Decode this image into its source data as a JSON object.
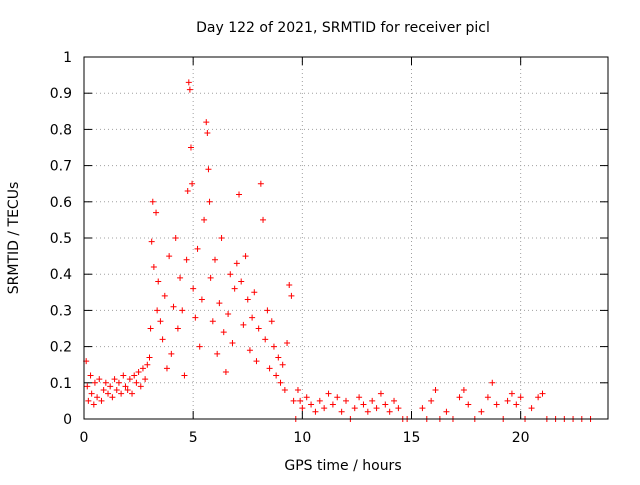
{
  "chart_data": {
    "type": "scatter",
    "title": "Day 122 of 2021, SRMTID for receiver picl",
    "xlabel": "GPS time / hours",
    "ylabel": "SRMTID / TECUs",
    "xlim": [
      0,
      24
    ],
    "ylim": [
      0,
      1
    ],
    "grid": true,
    "marker": "+",
    "series_color": "#ff0000",
    "x_ticks": [
      0,
      5,
      10,
      15,
      20
    ],
    "x_tick_labels": [
      "0",
      "5",
      "10",
      "15",
      "20"
    ],
    "y_ticks": [
      0,
      0.1,
      0.2,
      0.3,
      0.4,
      0.5,
      0.6,
      0.7,
      0.8,
      0.9,
      1
    ],
    "y_tick_labels": [
      "0",
      "0.1",
      "0.2",
      "0.3",
      "0.4",
      "0.5",
      "0.6",
      "0.7",
      "0.8",
      "0.9",
      "1"
    ],
    "series": [
      {
        "name": "SRMTID",
        "points": [
          [
            0.1,
            0.16
          ],
          [
            0.15,
            0.09
          ],
          [
            0.2,
            0.05
          ],
          [
            0.3,
            0.12
          ],
          [
            0.35,
            0.07
          ],
          [
            0.45,
            0.04
          ],
          [
            0.5,
            0.1
          ],
          [
            0.6,
            0.06
          ],
          [
            0.7,
            0.11
          ],
          [
            0.8,
            0.05
          ],
          [
            0.9,
            0.08
          ],
          [
            1.0,
            0.1
          ],
          [
            1.1,
            0.07
          ],
          [
            1.2,
            0.09
          ],
          [
            1.3,
            0.06
          ],
          [
            1.4,
            0.11
          ],
          [
            1.5,
            0.08
          ],
          [
            1.6,
            0.1
          ],
          [
            1.7,
            0.07
          ],
          [
            1.8,
            0.12
          ],
          [
            1.9,
            0.09
          ],
          [
            2.0,
            0.08
          ],
          [
            2.1,
            0.11
          ],
          [
            2.2,
            0.07
          ],
          [
            2.3,
            0.12
          ],
          [
            2.4,
            0.1
          ],
          [
            2.5,
            0.13
          ],
          [
            2.6,
            0.09
          ],
          [
            2.7,
            0.14
          ],
          [
            2.8,
            0.11
          ],
          [
            2.9,
            0.15
          ],
          [
            3.0,
            0.17
          ],
          [
            3.05,
            0.25
          ],
          [
            3.1,
            0.49
          ],
          [
            3.15,
            0.6
          ],
          [
            3.2,
            0.42
          ],
          [
            3.3,
            0.57
          ],
          [
            3.35,
            0.3
          ],
          [
            3.4,
            0.38
          ],
          [
            3.5,
            0.27
          ],
          [
            3.6,
            0.22
          ],
          [
            3.7,
            0.34
          ],
          [
            3.8,
            0.14
          ],
          [
            3.9,
            0.45
          ],
          [
            4.0,
            0.18
          ],
          [
            4.1,
            0.31
          ],
          [
            4.2,
            0.5
          ],
          [
            4.3,
            0.25
          ],
          [
            4.4,
            0.39
          ],
          [
            4.5,
            0.3
          ],
          [
            4.6,
            0.12
          ],
          [
            4.7,
            0.44
          ],
          [
            4.75,
            0.63
          ],
          [
            4.8,
            0.93
          ],
          [
            4.85,
            0.91
          ],
          [
            4.9,
            0.75
          ],
          [
            4.95,
            0.65
          ],
          [
            5.0,
            0.36
          ],
          [
            5.1,
            0.28
          ],
          [
            5.2,
            0.47
          ],
          [
            5.3,
            0.2
          ],
          [
            5.4,
            0.33
          ],
          [
            5.5,
            0.55
          ],
          [
            5.6,
            0.82
          ],
          [
            5.65,
            0.79
          ],
          [
            5.7,
            0.69
          ],
          [
            5.75,
            0.6
          ],
          [
            5.8,
            0.39
          ],
          [
            5.9,
            0.27
          ],
          [
            6.0,
            0.44
          ],
          [
            6.1,
            0.18
          ],
          [
            6.2,
            0.32
          ],
          [
            6.3,
            0.5
          ],
          [
            6.4,
            0.24
          ],
          [
            6.5,
            0.13
          ],
          [
            6.6,
            0.29
          ],
          [
            6.7,
            0.4
          ],
          [
            6.8,
            0.21
          ],
          [
            6.9,
            0.36
          ],
          [
            7.0,
            0.43
          ],
          [
            7.1,
            0.62
          ],
          [
            7.2,
            0.38
          ],
          [
            7.3,
            0.26
          ],
          [
            7.4,
            0.45
          ],
          [
            7.5,
            0.33
          ],
          [
            7.6,
            0.19
          ],
          [
            7.7,
            0.28
          ],
          [
            7.8,
            0.35
          ],
          [
            7.9,
            0.16
          ],
          [
            8.0,
            0.25
          ],
          [
            8.1,
            0.65
          ],
          [
            8.2,
            0.55
          ],
          [
            8.3,
            0.22
          ],
          [
            8.4,
            0.3
          ],
          [
            8.5,
            0.14
          ],
          [
            8.6,
            0.27
          ],
          [
            8.7,
            0.2
          ],
          [
            8.8,
            0.12
          ],
          [
            8.9,
            0.17
          ],
          [
            9.0,
            0.1
          ],
          [
            9.1,
            0.15
          ],
          [
            9.2,
            0.08
          ],
          [
            9.3,
            0.21
          ],
          [
            9.4,
            0.37
          ],
          [
            9.5,
            0.34
          ],
          [
            9.6,
            0.05
          ],
          [
            9.7,
            0.0
          ],
          [
            9.8,
            0.08
          ],
          [
            9.9,
            0.05
          ],
          [
            10.0,
            0.03
          ],
          [
            10.2,
            0.06
          ],
          [
            10.4,
            0.04
          ],
          [
            10.6,
            0.02
          ],
          [
            10.8,
            0.05
          ],
          [
            11.0,
            0.03
          ],
          [
            11.2,
            0.07
          ],
          [
            11.4,
            0.04
          ],
          [
            11.6,
            0.06
          ],
          [
            11.8,
            0.02
          ],
          [
            12.0,
            0.05
          ],
          [
            12.2,
            0.0
          ],
          [
            12.4,
            0.03
          ],
          [
            12.6,
            0.06
          ],
          [
            12.8,
            0.04
          ],
          [
            13.0,
            0.02
          ],
          [
            13.2,
            0.05
          ],
          [
            13.4,
            0.03
          ],
          [
            13.6,
            0.07
          ],
          [
            13.8,
            0.04
          ],
          [
            14.0,
            0.02
          ],
          [
            14.2,
            0.05
          ],
          [
            14.4,
            0.03
          ],
          [
            14.6,
            0.0
          ],
          [
            14.8,
            0.0
          ],
          [
            15.5,
            0.03
          ],
          [
            15.7,
            0.0
          ],
          [
            15.9,
            0.05
          ],
          [
            16.1,
            0.08
          ],
          [
            16.3,
            0.0
          ],
          [
            16.6,
            0.02
          ],
          [
            16.9,
            0.0
          ],
          [
            17.2,
            0.06
          ],
          [
            17.4,
            0.08
          ],
          [
            17.6,
            0.04
          ],
          [
            17.9,
            0.0
          ],
          [
            18.2,
            0.02
          ],
          [
            18.5,
            0.06
          ],
          [
            18.7,
            0.1
          ],
          [
            18.9,
            0.04
          ],
          [
            19.2,
            0.0
          ],
          [
            19.4,
            0.05
          ],
          [
            19.6,
            0.07
          ],
          [
            19.8,
            0.04
          ],
          [
            20.0,
            0.06
          ],
          [
            20.2,
            0.0
          ],
          [
            20.5,
            0.03
          ],
          [
            20.8,
            0.06
          ],
          [
            21.0,
            0.07
          ],
          [
            21.2,
            0.0
          ],
          [
            21.6,
            0.0
          ],
          [
            22.0,
            0.0
          ],
          [
            22.4,
            0.0
          ],
          [
            22.8,
            0.0
          ],
          [
            23.2,
            0.0
          ]
        ]
      }
    ]
  }
}
